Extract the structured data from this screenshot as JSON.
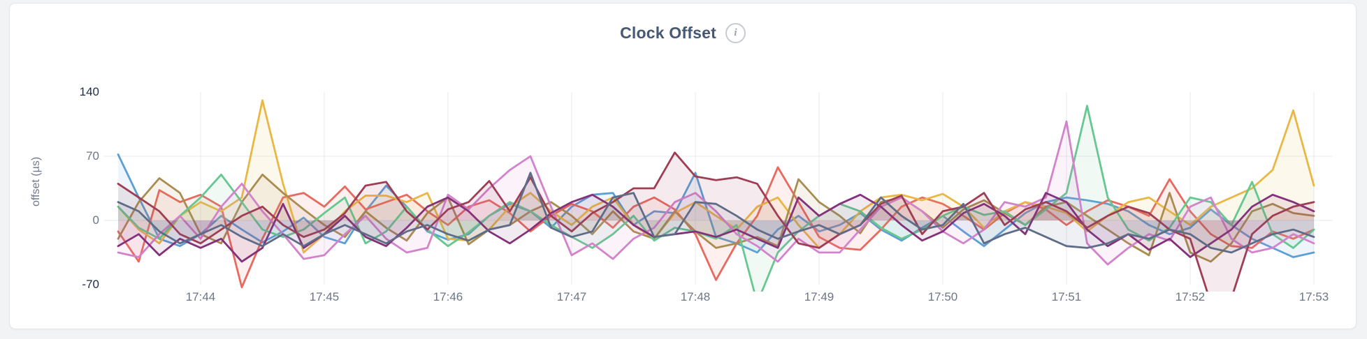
{
  "card": {
    "title": "Clock Offset",
    "info_icon_glyph": "i"
  },
  "colors": {
    "title": "#475872",
    "axis_tick": "#6B7686",
    "axis_tick_extreme": "#1E2B49",
    "gridline": "#E7E9EC",
    "card_background": "#FFFFFF",
    "page_background": "#F2F3F5"
  },
  "chart_data": {
    "type": "line",
    "title": "Clock Offset",
    "xlabel": "",
    "ylabel": "offset (µs)",
    "ylim": [
      -70,
      140
    ],
    "y_ticks": [
      140,
      70,
      0,
      -70
    ],
    "x_tick_labels": [
      "17:44",
      "17:45",
      "17:46",
      "17:47",
      "17:48",
      "17:49",
      "17:50",
      "17:51",
      "17:52",
      "17:53"
    ],
    "time_step_seconds": 10,
    "points_per_series": 59,
    "grid": "on",
    "legend": "none",
    "area_fill": true,
    "series": [
      {
        "name": "blue",
        "color": "#5C9FD6",
        "values": [
          72,
          25,
          -20,
          -28,
          -15,
          5,
          -10,
          -24,
          -12,
          3,
          -18,
          -25,
          10,
          38,
          15,
          -12,
          -21,
          -15,
          5,
          18,
          10,
          -8,
          15,
          28,
          30,
          -5,
          10,
          8,
          52,
          -18,
          -25,
          -35,
          -10,
          5,
          -12,
          -5,
          8,
          -10,
          -22,
          -8,
          5,
          -12,
          -28,
          -10,
          8,
          20,
          25,
          22,
          18,
          10,
          -5,
          -15,
          -8,
          12,
          -5,
          -20,
          -30,
          -40,
          -35
        ]
      },
      {
        "name": "red",
        "color": "#E8695F",
        "values": [
          -12,
          -45,
          33,
          20,
          28,
          15,
          -73,
          -20,
          25,
          30,
          15,
          37,
          12,
          20,
          28,
          10,
          -5,
          15,
          22,
          8,
          -12,
          5,
          18,
          10,
          -8,
          15,
          25,
          12,
          -15,
          -65,
          -25,
          5,
          58,
          20,
          -18,
          -30,
          -32,
          -10,
          15,
          25,
          18,
          5,
          -10,
          8,
          20,
          12,
          -5,
          10,
          22,
          15,
          5,
          45,
          10,
          -15,
          -28,
          -30,
          -12,
          -20,
          -10
        ]
      },
      {
        "name": "gold",
        "color": "#E9B844",
        "values": [
          15,
          -10,
          -25,
          5,
          20,
          10,
          25,
          131,
          40,
          -35,
          -15,
          10,
          27,
          27,
          20,
          30,
          -20,
          -22,
          -10,
          15,
          30,
          10,
          -5,
          15,
          25,
          -5,
          -20,
          8,
          20,
          5,
          -10,
          15,
          25,
          -5,
          -30,
          -15,
          10,
          25,
          28,
          22,
          29,
          15,
          -8,
          10,
          20,
          15,
          8,
          -12,
          5,
          20,
          25,
          10,
          -5,
          15,
          25,
          35,
          55,
          120,
          38
        ]
      },
      {
        "name": "olive",
        "color": "#A98C4F",
        "values": [
          -20,
          20,
          46,
          30,
          -15,
          -25,
          20,
          50,
          30,
          12,
          -5,
          -18,
          10,
          -8,
          -22,
          8,
          25,
          -26,
          -10,
          -5,
          10,
          20,
          5,
          -15,
          10,
          -12,
          -20,
          10,
          -12,
          -30,
          -25,
          -18,
          -28,
          45,
          20,
          5,
          -14,
          20,
          25,
          10,
          -8,
          12,
          22,
          8,
          -5,
          15,
          20,
          5,
          -10,
          -25,
          -38,
          30,
          -35,
          -45,
          -25,
          10,
          18,
          8,
          5
        ]
      },
      {
        "name": "green",
        "color": "#67C790",
        "values": [
          15,
          -8,
          -20,
          5,
          25,
          50,
          20,
          -10,
          -18,
          -10,
          8,
          25,
          -25,
          -12,
          15,
          -10,
          -28,
          -13,
          5,
          20,
          10,
          -5,
          -18,
          -30,
          -15,
          5,
          -22,
          -8,
          -12,
          -20,
          -5,
          -90,
          -35,
          -12,
          5,
          18,
          10,
          -8,
          -20,
          -10,
          5,
          15,
          6,
          10,
          -5,
          12,
          30,
          125,
          25,
          -10,
          -22,
          -8,
          25,
          20,
          -5,
          42,
          -15,
          -30,
          -10
        ]
      },
      {
        "name": "orchid",
        "color": "#D383CB",
        "values": [
          -35,
          -40,
          -15,
          5,
          -20,
          15,
          40,
          10,
          -15,
          -42,
          -38,
          -15,
          5,
          -20,
          -35,
          -30,
          28,
          12,
          35,
          55,
          70,
          15,
          -38,
          -25,
          -42,
          -20,
          -8,
          20,
          30,
          10,
          -15,
          -28,
          -45,
          -20,
          -35,
          -35,
          -10,
          15,
          25,
          10,
          -12,
          -25,
          -10,
          20,
          15,
          25,
          108,
          -25,
          -48,
          -30,
          -15,
          -22,
          15,
          25,
          -20,
          -35,
          -30,
          -15,
          -25
        ]
      },
      {
        "name": "plum",
        "color": "#83327A",
        "values": [
          -28,
          -15,
          -38,
          -20,
          -30,
          -20,
          -45,
          -30,
          18,
          -30,
          -15,
          5,
          -18,
          -28,
          -8,
          15,
          25,
          10,
          -12,
          -25,
          -10,
          8,
          20,
          28,
          15,
          -5,
          -18,
          -15,
          -12,
          -18,
          -10,
          -20,
          -30,
          25,
          5,
          18,
          28,
          15,
          -5,
          -22,
          -12,
          8,
          18,
          5,
          -15,
          30,
          20,
          -10,
          -28,
          -15,
          -32,
          -20,
          -40,
          -25,
          -10,
          15,
          28,
          20,
          10
        ]
      },
      {
        "name": "maroon",
        "color": "#9E3E55",
        "values": [
          40,
          25,
          10,
          -15,
          -25,
          -10,
          5,
          15,
          -5,
          -18,
          -10,
          8,
          38,
          42,
          10,
          -10,
          12,
          20,
          43,
          10,
          47,
          5,
          -12,
          8,
          20,
          35,
          35,
          74,
          48,
          44,
          47,
          40,
          5,
          -25,
          -30,
          -15,
          -5,
          18,
          27,
          -15,
          10,
          15,
          30,
          -5,
          12,
          20,
          10,
          -8,
          5,
          15,
          8,
          -10,
          -20,
          -90,
          -85,
          -15,
          5,
          15,
          20
        ]
      },
      {
        "name": "slate",
        "color": "#5F6C87",
        "values": [
          20,
          10,
          -12,
          -25,
          -15,
          -5,
          -18,
          -28,
          -15,
          -28,
          -15,
          -5,
          -15,
          -25,
          -12,
          -5,
          -15,
          -22,
          -10,
          -5,
          52,
          -8,
          -18,
          -12,
          25,
          30,
          -18,
          -15,
          20,
          18,
          5,
          -10,
          -20,
          -12,
          -5,
          -15,
          -5,
          25,
          5,
          -10,
          -5,
          18,
          -25,
          -15,
          -8,
          -18,
          -28,
          -30,
          -25,
          -15,
          -20,
          -10,
          -15,
          -30,
          -35,
          -25,
          -15,
          -10,
          -18
        ]
      }
    ]
  }
}
